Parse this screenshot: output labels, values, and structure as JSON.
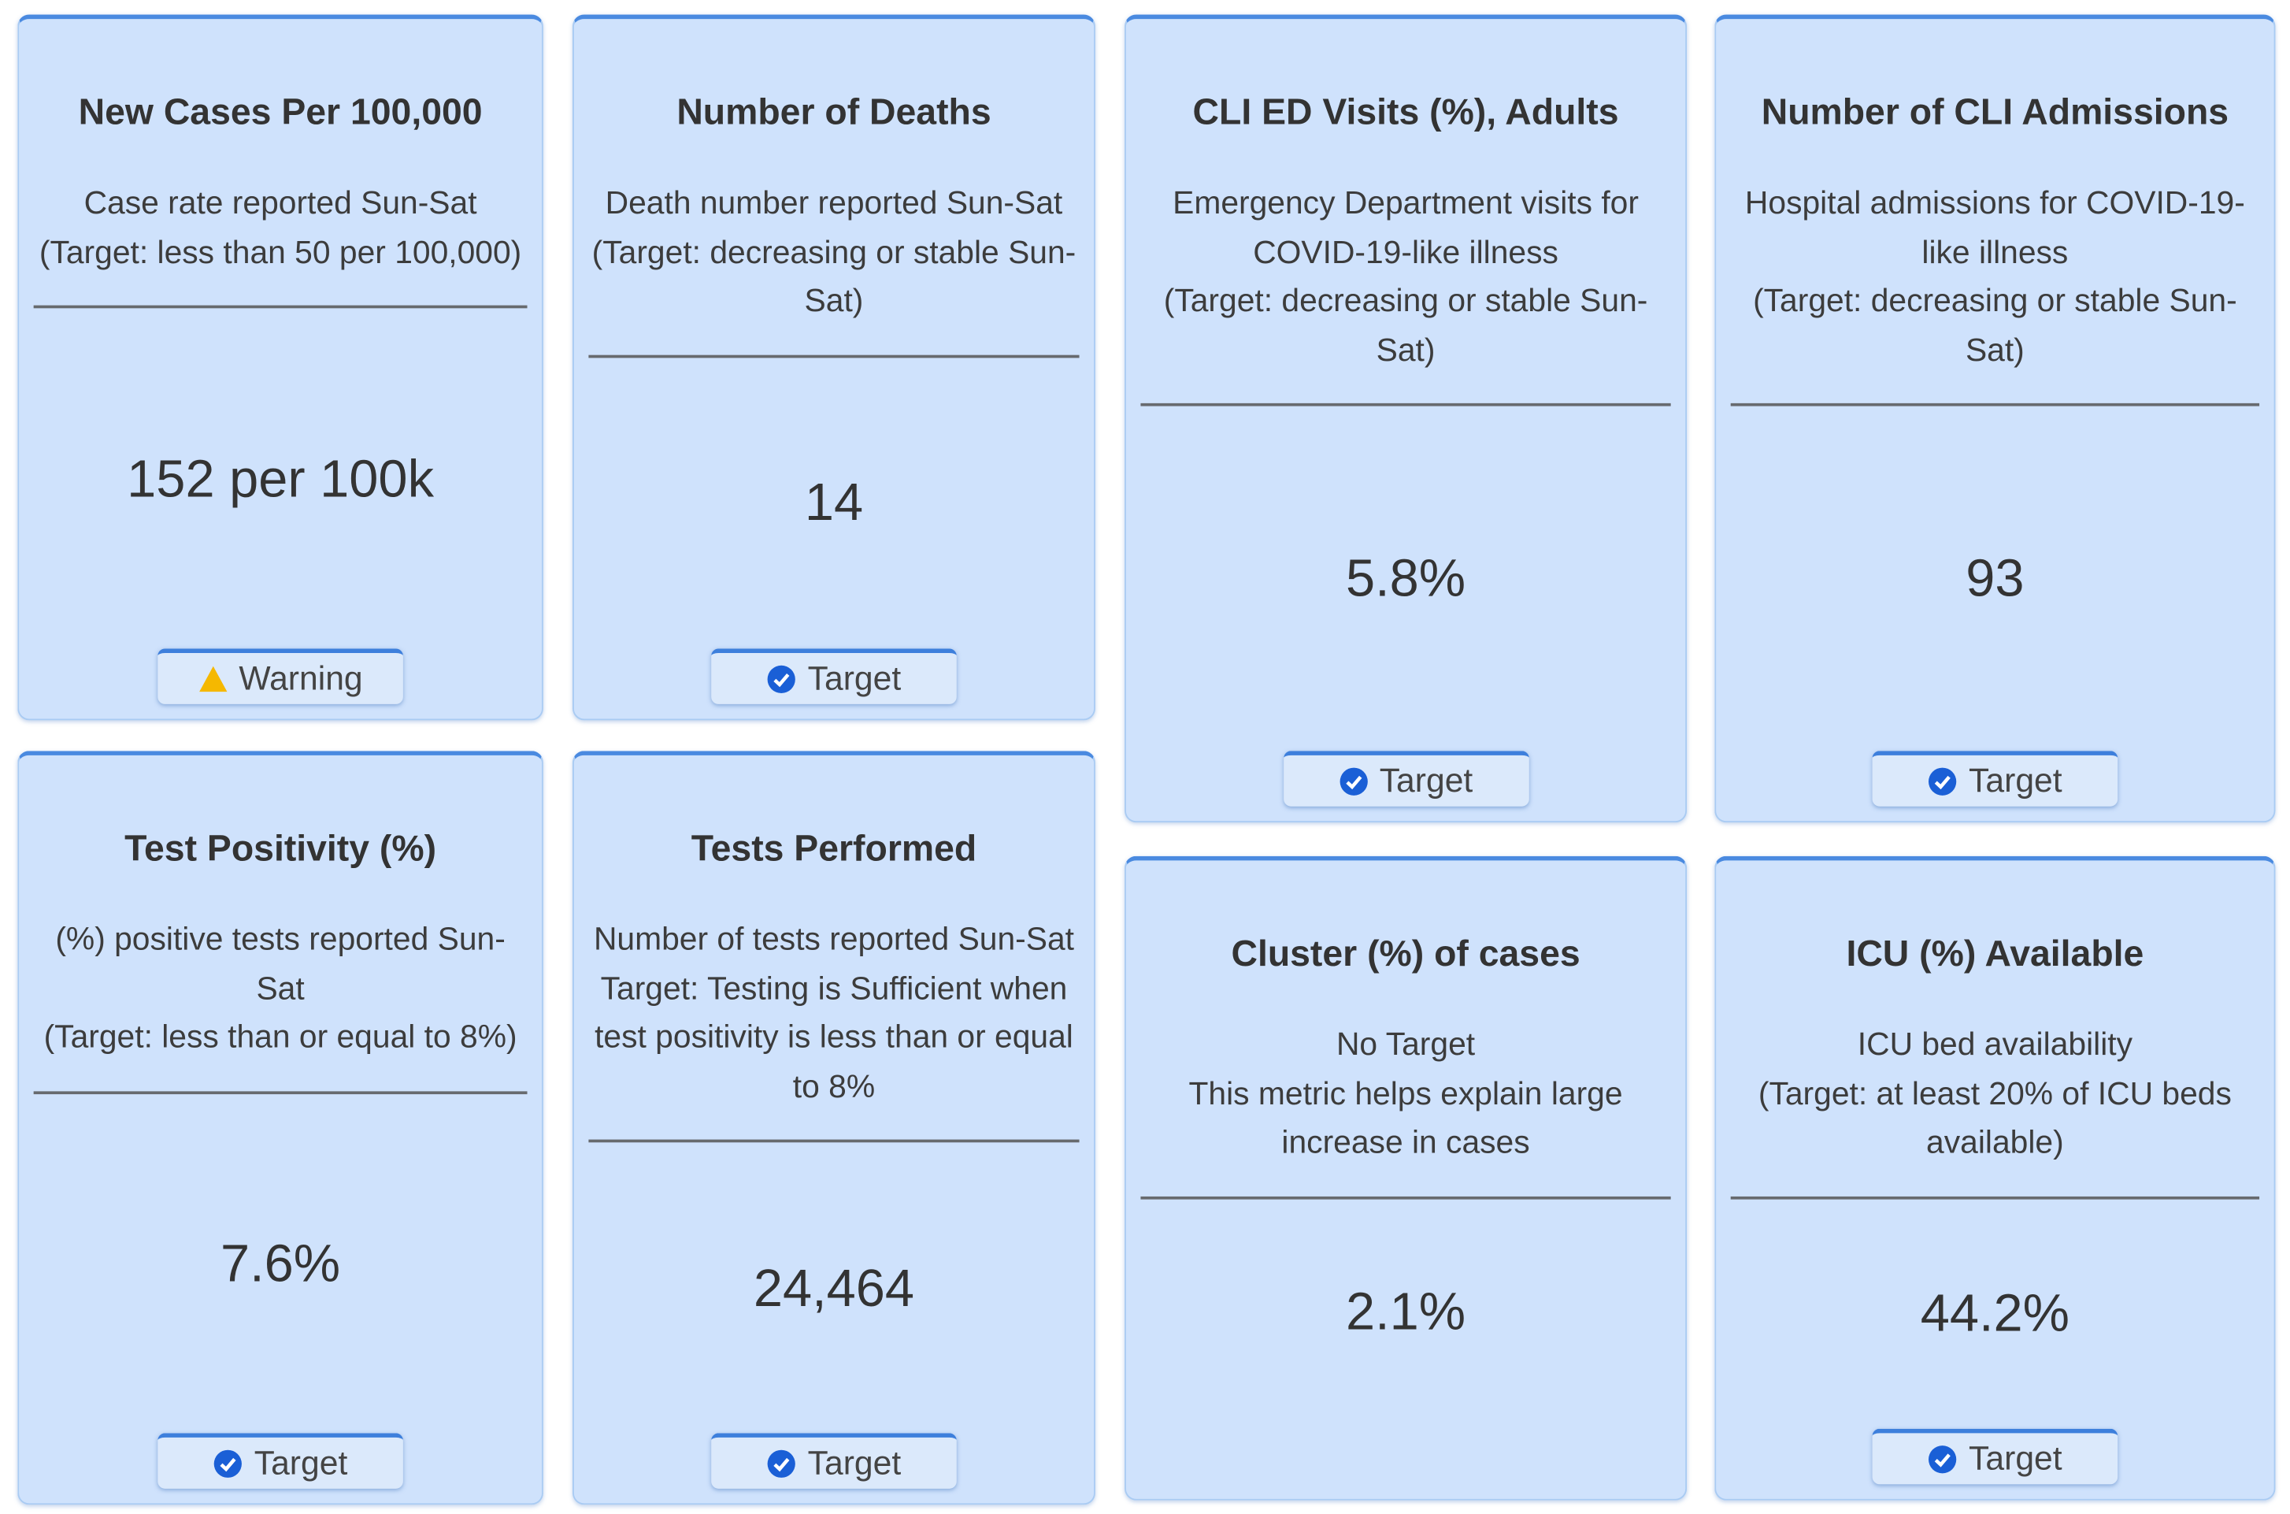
{
  "cards": [
    {
      "title": "New Cases Per 100,000",
      "description": [
        "Case rate reported Sun-Sat",
        "(Target: less than 50 per 100,000)"
      ],
      "value": "152 per 100k",
      "badge": {
        "label": "Warning",
        "icon": "warning"
      }
    },
    {
      "title": "Number of Deaths",
      "description": [
        "Death number reported Sun-Sat",
        "(Target: decreasing or stable Sun-Sat)"
      ],
      "value": "14",
      "badge": {
        "label": "Target",
        "icon": "check"
      }
    },
    {
      "title": "CLI ED Visits (%), Adults",
      "description": [
        "Emergency Department visits for COVID-19-like illness",
        "(Target: decreasing or stable Sun-Sat)"
      ],
      "value": "5.8%",
      "badge": {
        "label": "Target",
        "icon": "check"
      }
    },
    {
      "title": "Number of CLI Admissions",
      "description": [
        "Hospital admissions for COVID-19-like illness",
        "(Target: decreasing or stable Sun-Sat)"
      ],
      "value": "93",
      "badge": {
        "label": "Target",
        "icon": "check"
      }
    },
    {
      "title": "Test Positivity (%)",
      "description": [
        "(%) positive tests reported Sun-Sat",
        "(Target: less than or equal to 8%)"
      ],
      "value": "7.6%",
      "badge": {
        "label": "Target",
        "icon": "check"
      }
    },
    {
      "title": "Tests Performed",
      "description": [
        "Number of tests reported Sun-Sat",
        "Target: Testing is Sufficient when test positivity is less than or equal to 8%"
      ],
      "value": "24,464",
      "badge": {
        "label": "Target",
        "icon": "check"
      }
    },
    {
      "title": "Cluster (%) of cases",
      "description": [
        "No Target",
        "This metric helps explain large increase in cases"
      ],
      "value": "2.1%"
    },
    {
      "title": "ICU (%) Available",
      "description": [
        "ICU bed availability",
        "(Target: at least 20% of ICU beds available)"
      ],
      "value": "44.2%",
      "badge": {
        "label": "Target",
        "icon": "check"
      }
    }
  ]
}
